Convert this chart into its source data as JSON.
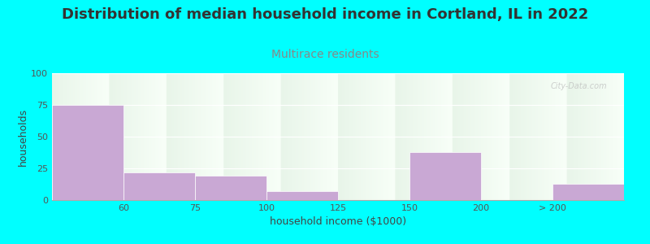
{
  "title": "Distribution of median household income in Cortland, IL in 2022",
  "subtitle": "Multirace residents",
  "xlabel": "household income ($1000)",
  "ylabel": "households",
  "background_color": "#00FFFF",
  "plot_bg_top": "#e8f5e9",
  "plot_bg_bottom": "#f8fff8",
  "bar_color": "#c9a8d4",
  "x_labels": [
    "60",
    "75",
    "100",
    "125",
    "150",
    "200",
    "> 200"
  ],
  "tick_positions": [
    0,
    1,
    2,
    3,
    4,
    5,
    6
  ],
  "bar_lefts": [
    -1,
    0,
    1,
    2,
    4,
    6
  ],
  "bar_widths": [
    1,
    1,
    1,
    1,
    1,
    1
  ],
  "bar_heights": [
    75,
    22,
    19,
    7,
    38,
    13
  ],
  "xlim": [
    -1,
    7
  ],
  "ylim": [
    0,
    100
  ],
  "yticks": [
    0,
    25,
    50,
    75,
    100
  ],
  "title_fontsize": 13,
  "subtitle_fontsize": 10,
  "subtitle_color": "#888888",
  "axis_label_fontsize": 9,
  "tick_fontsize": 8,
  "title_color": "#333333",
  "watermark": "City-Data.com",
  "watermark_color": "#bbbbbb"
}
